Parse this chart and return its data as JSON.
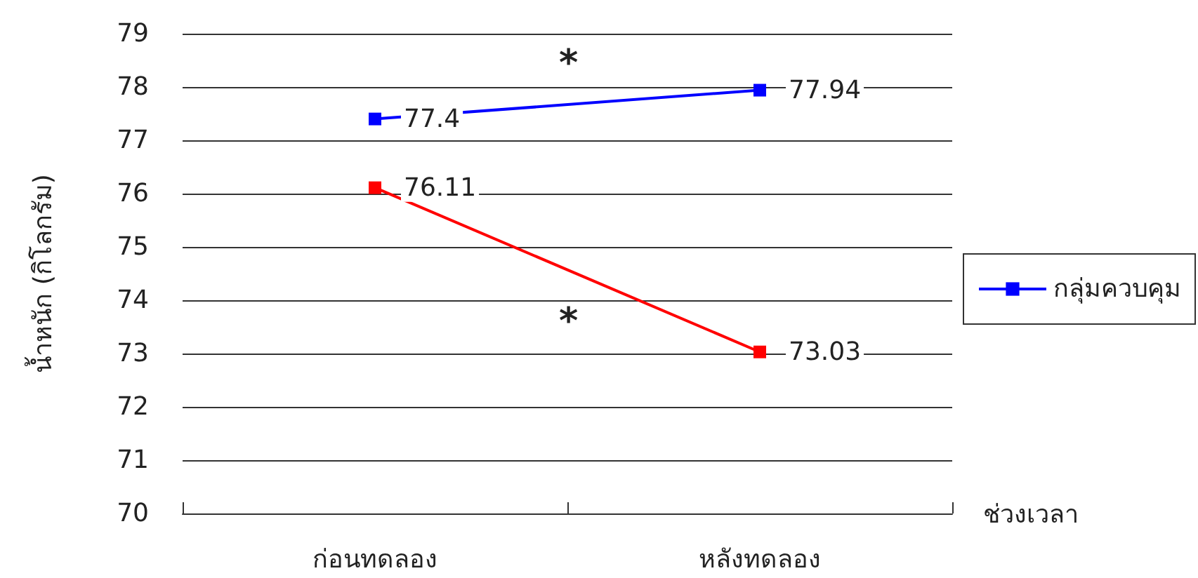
{
  "chart_data": {
    "type": "line",
    "ylabel": "น้ำหนัก (กิโลกรัม)",
    "xlabel": "ช่วงเวลา",
    "categories": [
      "ก่อนทดลอง",
      "หลังทดลอง"
    ],
    "series": [
      {
        "name": "กลุ่มควบคุม",
        "color": "#0000ff",
        "values": [
          77.4,
          77.94
        ]
      },
      {
        "color": "#ff0000",
        "values": [
          76.11,
          73.03
        ]
      }
    ],
    "ylim": [
      70,
      79
    ],
    "yticks": [
      70,
      71,
      72,
      73,
      74,
      75,
      76,
      77,
      78,
      79
    ],
    "grid": "y",
    "legend": "right",
    "marker": "square",
    "line_style": "solid",
    "data_labels": true,
    "annotations": [
      "*",
      "*"
    ]
  }
}
